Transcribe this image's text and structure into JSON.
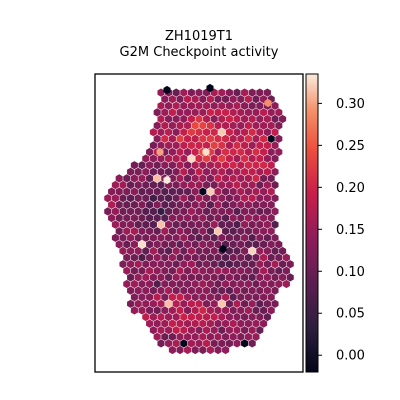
{
  "chart_data": {
    "type": "scatter",
    "title": "ZH1019T1",
    "subtitle": "G2M Checkpoint activity",
    "xlabel": "",
    "ylabel": "",
    "grid": false,
    "colormap": "rocket",
    "colorbar": {
      "vmin": -0.02,
      "vmax": 0.335,
      "ticks": [
        0.0,
        0.05,
        0.1,
        0.15,
        0.2,
        0.25,
        0.3
      ],
      "tick_labels": [
        "0.00",
        "0.05",
        "0.10",
        "0.15",
        "0.20",
        "0.25",
        "0.30"
      ]
    },
    "point_style": "hexagonal spots",
    "seed": 1019
  }
}
